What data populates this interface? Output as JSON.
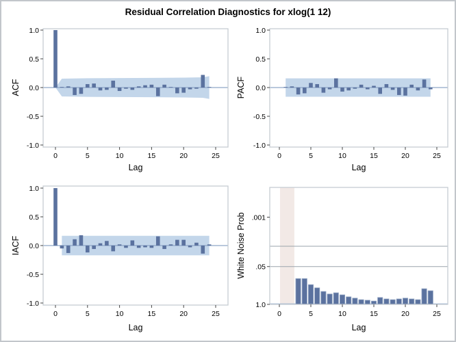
{
  "title": "Residual Correlation Diagnostics for xlog(1 12)",
  "colors": {
    "bar_fill": "#5b729f",
    "bar_stroke": "#8ca0bf",
    "band_fill": "#c3d6ea",
    "zero_line": "#8fa6c6",
    "frame": "#c6ccd3",
    "gridline": "#9aa3ab",
    "prob_baseline": "#9db4d2",
    "shaded_region": "#f2e9e6",
    "tick_mark": "#444444",
    "text": "#000000",
    "outer_border": "#c2c6cb"
  },
  "chart_data": [
    {
      "type": "bar",
      "panel": "ACF",
      "ylabel": "ACF",
      "xlabel": "Lag",
      "ylim": [
        -1,
        1
      ],
      "yticks": [
        {
          "label": "1.0",
          "value": 1
        },
        {
          "label": "0.5",
          "value": 0.5
        },
        {
          "label": "0.0",
          "value": 0
        },
        {
          "label": "-0.5",
          "value": -0.5
        },
        {
          "label": "-1.0",
          "value": -1
        }
      ],
      "xticks": [
        0,
        5,
        10,
        15,
        20,
        25
      ],
      "lags": [
        0,
        1,
        2,
        3,
        4,
        5,
        6,
        7,
        8,
        9,
        10,
        11,
        12,
        13,
        14,
        15,
        16,
        17,
        18,
        19,
        20,
        21,
        22,
        23,
        24
      ],
      "values": [
        1.0,
        0.01,
        0.02,
        -0.13,
        -0.11,
        0.06,
        0.07,
        -0.05,
        -0.04,
        0.12,
        -0.06,
        -0.02,
        -0.04,
        0.02,
        0.04,
        0.05,
        -0.15,
        0.05,
        0.01,
        -0.1,
        -0.09,
        -0.03,
        -0.02,
        0.22,
        0.01
      ],
      "band": {
        "shape": "taper",
        "lags": [
          0,
          1,
          5,
          10,
          15,
          20,
          23,
          24
        ],
        "halfwidth": [
          0,
          0.155,
          0.162,
          0.165,
          0.168,
          0.172,
          0.178,
          0.198
        ]
      },
      "grid": false,
      "legend": null
    },
    {
      "type": "bar",
      "panel": "PACF",
      "ylabel": "PACF",
      "xlabel": "Lag",
      "ylim": [
        -1,
        1
      ],
      "yticks": [
        {
          "label": "1.0",
          "value": 1
        },
        {
          "label": "0.5",
          "value": 0.5
        },
        {
          "label": "0.0",
          "value": 0
        },
        {
          "label": "-0.5",
          "value": -0.5
        },
        {
          "label": "-1.0",
          "value": -1
        }
      ],
      "xticks": [
        0,
        5,
        10,
        15,
        20,
        25
      ],
      "lags": [
        1,
        2,
        3,
        4,
        5,
        6,
        7,
        8,
        9,
        10,
        11,
        12,
        13,
        14,
        15,
        16,
        17,
        18,
        19,
        20,
        21,
        22,
        23,
        24
      ],
      "values": [
        0.01,
        0.02,
        -0.12,
        -0.1,
        0.08,
        0.06,
        -0.09,
        -0.03,
        0.16,
        -0.07,
        -0.05,
        -0.02,
        0.05,
        -0.03,
        0.03,
        -0.11,
        0.06,
        -0.04,
        -0.13,
        -0.14,
        0.05,
        -0.05,
        0.14,
        -0.03
      ],
      "band": {
        "shape": "flat",
        "from": 1,
        "to": 24,
        "halfwidth": 0.16
      },
      "grid": false,
      "legend": null
    },
    {
      "type": "bar",
      "panel": "IACF",
      "ylabel": "IACF",
      "xlabel": "Lag",
      "ylim": [
        -1,
        1
      ],
      "yticks": [
        {
          "label": "1.0",
          "value": 1
        },
        {
          "label": "0.5",
          "value": 0.5
        },
        {
          "label": "0.0",
          "value": 0
        },
        {
          "label": "-0.5",
          "value": -0.5
        },
        {
          "label": "-1.0",
          "value": -1
        }
      ],
      "xticks": [
        0,
        5,
        10,
        15,
        20,
        25
      ],
      "lags": [
        0,
        1,
        2,
        3,
        4,
        5,
        6,
        7,
        8,
        9,
        10,
        11,
        12,
        13,
        14,
        15,
        16,
        17,
        18,
        19,
        20,
        21,
        22,
        23,
        24
      ],
      "values": [
        1.0,
        -0.05,
        -0.13,
        0.11,
        0.18,
        -0.12,
        -0.06,
        0.04,
        0.08,
        -0.1,
        0.02,
        -0.04,
        0.09,
        -0.04,
        -0.03,
        -0.04,
        0.16,
        -0.06,
        0.02,
        0.1,
        0.1,
        -0.03,
        0.05,
        -0.14,
        0.02
      ],
      "band": {
        "shape": "flat",
        "from": 1,
        "to": 24,
        "halfwidth": 0.17
      },
      "grid": false,
      "legend": null
    },
    {
      "type": "bar",
      "panel": "WhiteNoiseProb",
      "ylabel": "White Noise Prob",
      "xlabel": "Lag",
      "yscale": "reversed-log",
      "ylim_top_prob": 0.0001,
      "ylim_bottom_prob": 1.0,
      "yticks": [
        {
          "label": ".001",
          "value": 0.001
        },
        {
          "label": ".05",
          "value": 0.05
        },
        {
          "label": "1.0",
          "value": 1.0
        }
      ],
      "gridlines": [
        0.01,
        0.05
      ],
      "baseline_prob": 1.0,
      "shaded_lag_region": [
        0,
        2
      ],
      "xticks": [
        0,
        5,
        10,
        15,
        20,
        25
      ],
      "lags": [
        3,
        4,
        5,
        6,
        7,
        8,
        9,
        10,
        11,
        12,
        13,
        14,
        15,
        16,
        17,
        18,
        19,
        20,
        21,
        22,
        23,
        24
      ],
      "values": [
        0.13,
        0.13,
        0.21,
        0.27,
        0.36,
        0.44,
        0.4,
        0.47,
        0.55,
        0.61,
        0.69,
        0.72,
        0.77,
        0.58,
        0.65,
        0.69,
        0.65,
        0.61,
        0.65,
        0.69,
        0.29,
        0.34
      ],
      "grid": true,
      "legend": null
    }
  ]
}
